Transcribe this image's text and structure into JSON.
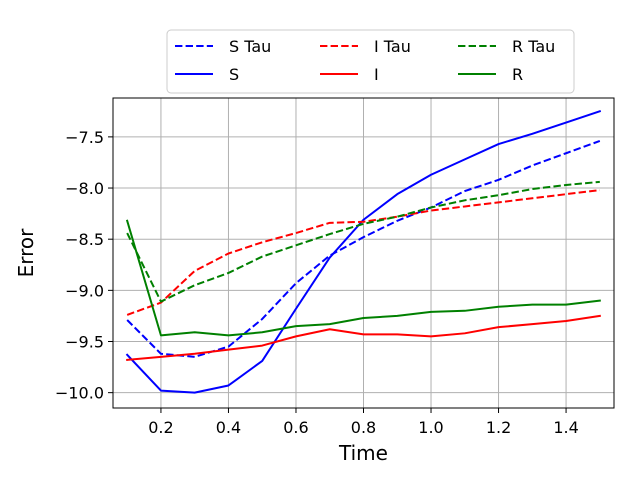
{
  "chart_data": {
    "type": "line",
    "title": "",
    "xlabel": "Time",
    "ylabel": "Error",
    "xlim": [
      0.058,
      1.542
    ],
    "ylim": [
      -10.15,
      -7.12
    ],
    "xticks": [
      0.2,
      0.4,
      0.6,
      0.8,
      1.0,
      1.2,
      1.4
    ],
    "xtick_labels": [
      "0.2",
      "0.4",
      "0.6",
      "0.8",
      "1.0",
      "1.2",
      "1.4"
    ],
    "yticks": [
      -10.0,
      -9.5,
      -9.0,
      -8.5,
      -8.0,
      -7.5
    ],
    "ytick_labels": [
      "−10.0",
      "−9.5",
      "−9.0",
      "−8.5",
      "−8.0",
      "−7.5"
    ],
    "grid": true,
    "legend": {
      "placement": "top-center-outside",
      "columns": 3
    },
    "x": [
      0.1,
      0.2,
      0.3,
      0.4,
      0.5,
      0.6,
      0.7,
      0.8,
      0.9,
      1.0,
      1.1,
      1.2,
      1.3,
      1.4,
      1.5
    ],
    "series": [
      {
        "name": "S Tau",
        "color": "#0000ff",
        "dashed": true,
        "values": [
          -9.29,
          -9.62,
          -9.65,
          -9.55,
          -9.28,
          -8.93,
          -8.66,
          -8.48,
          -8.32,
          -8.19,
          -8.03,
          -7.92,
          -7.78,
          -7.66,
          -7.54
        ]
      },
      {
        "name": "S",
        "color": "#0000ff",
        "dashed": false,
        "values": [
          -9.63,
          -9.98,
          -10.0,
          -9.93,
          -9.69,
          -9.18,
          -8.68,
          -8.31,
          -8.06,
          -7.87,
          -7.72,
          -7.57,
          -7.47,
          -7.36,
          -7.25
        ]
      },
      {
        "name": "I Tau",
        "color": "#ff0000",
        "dashed": true,
        "values": [
          -9.24,
          -9.12,
          -8.81,
          -8.64,
          -8.53,
          -8.44,
          -8.34,
          -8.33,
          -8.28,
          -8.22,
          -8.18,
          -8.14,
          -8.1,
          -8.06,
          -8.02
        ]
      },
      {
        "name": "I",
        "color": "#ff0000",
        "dashed": false,
        "values": [
          -9.68,
          -9.65,
          -9.62,
          -9.58,
          -9.54,
          -9.45,
          -9.38,
          -9.43,
          -9.43,
          -9.45,
          -9.42,
          -9.36,
          -9.33,
          -9.3,
          -9.25
        ]
      },
      {
        "name": "R Tau",
        "color": "#008000",
        "dashed": true,
        "values": [
          -8.44,
          -9.11,
          -8.95,
          -8.83,
          -8.67,
          -8.56,
          -8.45,
          -8.35,
          -8.28,
          -8.19,
          -8.12,
          -8.07,
          -8.01,
          -7.97,
          -7.94
        ]
      },
      {
        "name": "R",
        "color": "#008000",
        "dashed": false,
        "values": [
          -8.32,
          -9.44,
          -9.41,
          -9.44,
          -9.41,
          -9.35,
          -9.33,
          -9.27,
          -9.25,
          -9.21,
          -9.2,
          -9.16,
          -9.14,
          -9.14,
          -9.1
        ]
      }
    ]
  }
}
